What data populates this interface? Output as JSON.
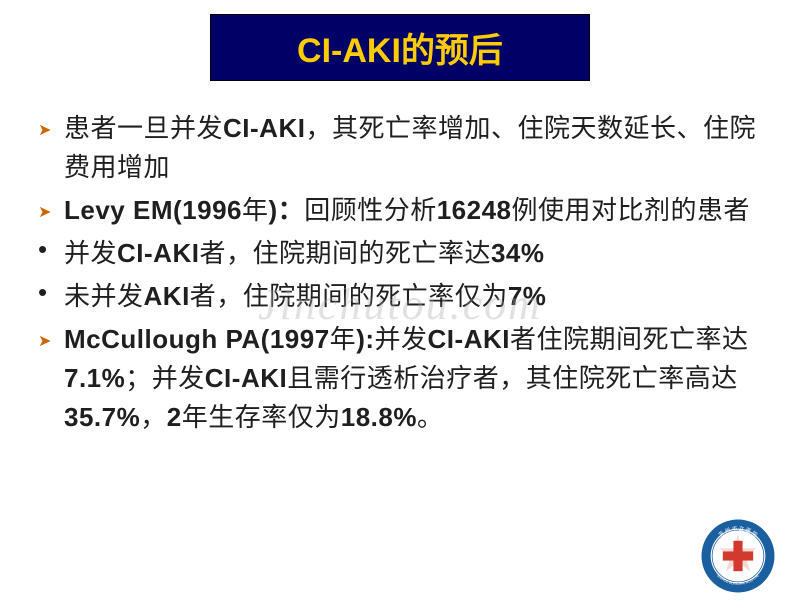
{
  "title": {
    "latin": "CI-AKI",
    "cn": "的预后",
    "bg_color": "#000066",
    "latin_color": "#ffcc00",
    "cn_color": "#ffcc00",
    "font_size": 34
  },
  "bullets": [
    {
      "marker": "arrow",
      "runs": [
        {
          "t": "患者一旦并发",
          "b": false
        },
        {
          "t": "CI-AKI",
          "b": true
        },
        {
          "t": "，其死亡率增加、住院天数延长、住院费用增加",
          "b": false
        }
      ]
    },
    {
      "marker": "arrow",
      "runs": [
        {
          "t": "Levy EM(1996",
          "b": true
        },
        {
          "t": "年",
          "b": false
        },
        {
          "t": ")",
          "b": true
        },
        {
          "t": "：",
          "b": true
        },
        {
          "t": "回顾性分析",
          "b": false
        },
        {
          "t": "16248",
          "b": true
        },
        {
          "t": "例使用对比剂的患者",
          "b": false
        }
      ]
    },
    {
      "marker": "dot",
      "runs": [
        {
          "t": "并发",
          "b": false
        },
        {
          "t": "CI-AKI",
          "b": true
        },
        {
          "t": "者，住院期间的死亡率达",
          "b": false
        },
        {
          "t": "34%",
          "b": true
        }
      ]
    },
    {
      "marker": "dot",
      "runs": [
        {
          "t": "未并发",
          "b": false
        },
        {
          "t": "AKI",
          "b": true
        },
        {
          "t": "者，住院期间的死亡率仅为",
          "b": false
        },
        {
          "t": "7%",
          "b": true
        }
      ]
    },
    {
      "marker": "arrow",
      "runs": [
        {
          "t": "McCullough PA(1997",
          "b": true
        },
        {
          "t": "年",
          "b": false
        },
        {
          "t": "):",
          "b": true
        },
        {
          "t": "并发",
          "b": false
        },
        {
          "t": "CI-AKI",
          "b": true
        },
        {
          "t": "者住院期间死亡率达",
          "b": false
        },
        {
          "t": "7.1%",
          "b": true
        },
        {
          "t": "；并发",
          "b": false
        },
        {
          "t": "CI-AKI",
          "b": true
        },
        {
          "t": "且需行透析治疗者，其住院死亡率高达",
          "b": false
        },
        {
          "t": "35.7%",
          "b": true
        },
        {
          "t": "，",
          "b": false
        },
        {
          "t": "2",
          "b": true
        },
        {
          "t": "年生存率仅为",
          "b": false
        },
        {
          "t": "18.8%",
          "b": true
        },
        {
          "t": "。",
          "b": false
        }
      ]
    }
  ],
  "watermark": "Jinchutou.com",
  "logo": {
    "outer_ring": "#1a5fa0",
    "inner_bg": "#ffffff",
    "cross": "#d23a2e",
    "text_top": "苏州市立医院",
    "text_bottom": "SUZHOU MUNICIPAL HOSPITAL"
  },
  "style": {
    "body_bg": "#ffffff",
    "text_color": "#1f1f1f",
    "arrow_color": "#cc6600",
    "dot_color": "#1f1f1f",
    "body_fontsize": 26
  }
}
